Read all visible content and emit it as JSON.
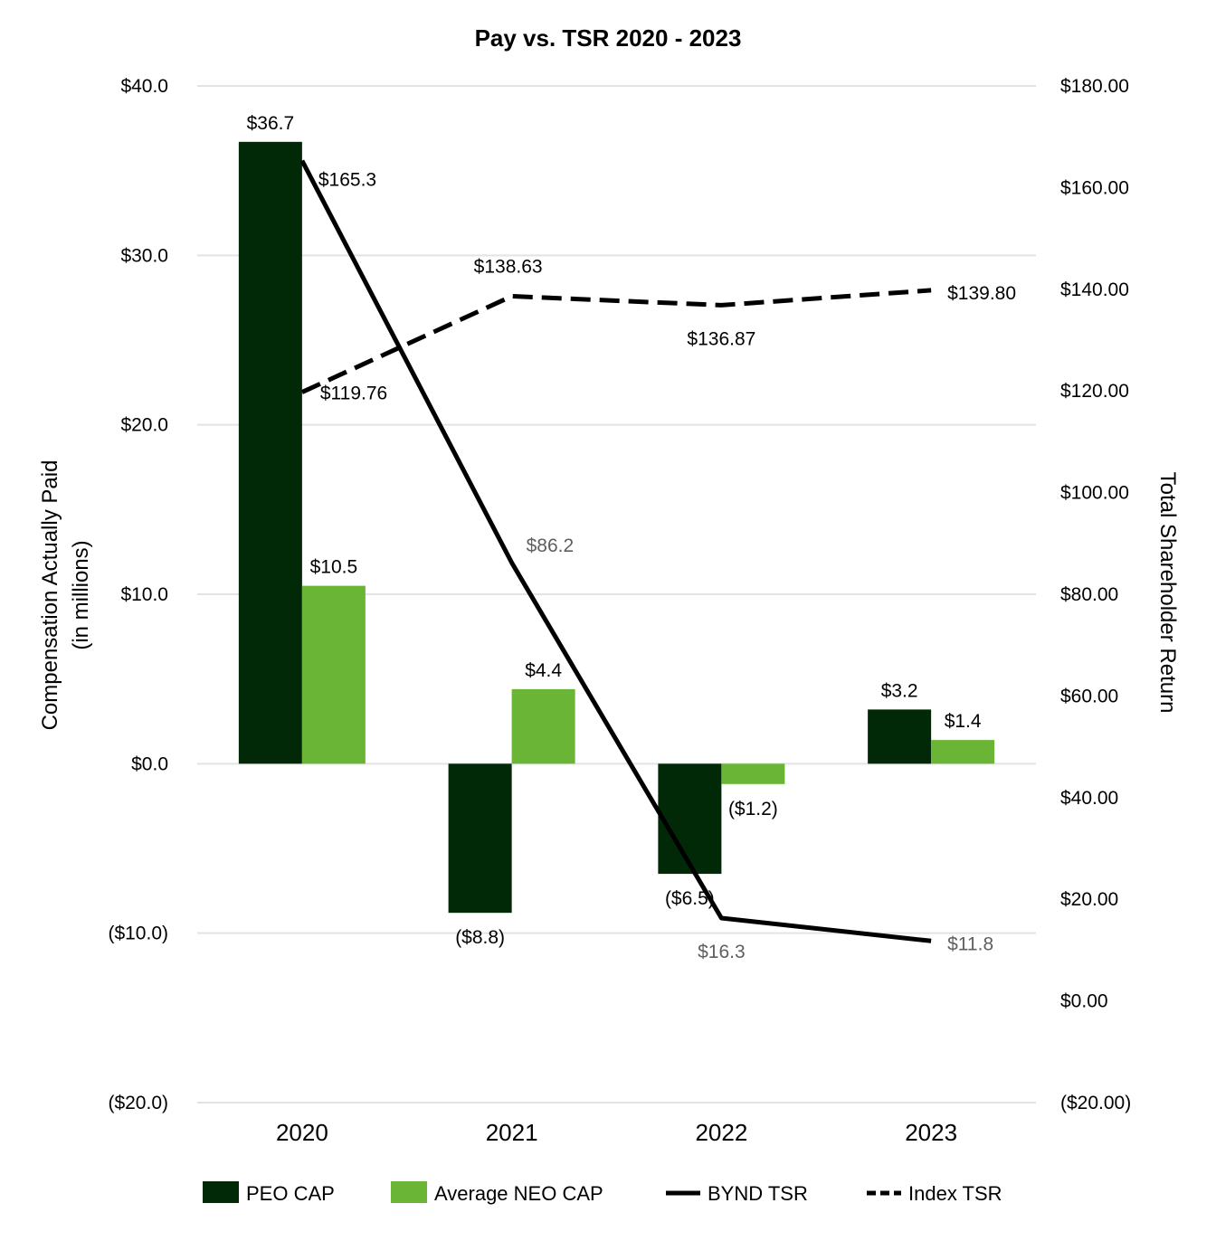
{
  "chart_data": {
    "type": "bar",
    "title": "Pay vs. TSR 2020 - 2023",
    "categories": [
      "2020",
      "2021",
      "2022",
      "2023"
    ],
    "ylabel_line1": "Compensation Actually Paid",
    "ylabel_line2": "(in millions)",
    "y2label": "Total Shareholder Return",
    "ylim": [
      -20,
      40
    ],
    "y2lim": [
      -20,
      180
    ],
    "yticks": [
      {
        "value": 40,
        "label": "$40.0"
      },
      {
        "value": 30,
        "label": "$30.0"
      },
      {
        "value": 20,
        "label": "$20.0"
      },
      {
        "value": 10,
        "label": "$10.0"
      },
      {
        "value": 0,
        "label": "$0.0"
      },
      {
        "value": -10,
        "label": "($10.0)"
      },
      {
        "value": -20,
        "label": "($20.0)"
      }
    ],
    "y2ticks": [
      {
        "value": 180,
        "label": "$180.00"
      },
      {
        "value": 160,
        "label": "$160.00"
      },
      {
        "value": 140,
        "label": "$140.00"
      },
      {
        "value": 120,
        "label": "$120.00"
      },
      {
        "value": 100,
        "label": "$100.00"
      },
      {
        "value": 80,
        "label": "$80.00"
      },
      {
        "value": 60,
        "label": "$60.00"
      },
      {
        "value": 40,
        "label": "$40.00"
      },
      {
        "value": 20,
        "label": "$20.00"
      },
      {
        "value": 0,
        "label": "$0.00"
      },
      {
        "value": -20,
        "label": "($20.00)"
      }
    ],
    "bar_series": [
      {
        "name": "PEO CAP",
        "color": "#022907",
        "values": [
          36.7,
          -8.8,
          -6.5,
          3.2
        ],
        "labels": [
          "$36.7",
          "($8.8)",
          "($6.5)",
          "$3.2"
        ]
      },
      {
        "name": "Average NEO CAP",
        "color": "#6bb536",
        "values": [
          10.5,
          4.4,
          -1.2,
          1.4
        ],
        "labels": [
          "$10.5",
          "$4.4",
          "($1.2)",
          "$1.4"
        ]
      }
    ],
    "line_series": [
      {
        "name": "BYND TSR",
        "axis": "right",
        "style": "solid",
        "color": "#000000",
        "values": [
          165.3,
          86.2,
          16.3,
          11.8
        ],
        "labels": [
          "$165.3",
          "$86.2",
          "$16.3",
          "$11.8"
        ]
      },
      {
        "name": "Index TSR",
        "axis": "right",
        "style": "dashed",
        "color": "#000000",
        "values": [
          119.76,
          138.63,
          136.87,
          139.8
        ],
        "labels": [
          "$119.76",
          "$138.63",
          "$136.87",
          "$139.80"
        ]
      }
    ],
    "grid": true,
    "legend_position": "bottom"
  }
}
